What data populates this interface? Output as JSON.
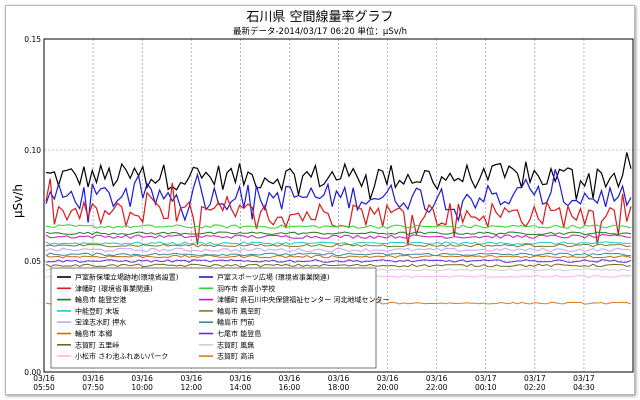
{
  "chart_data": {
    "type": "line",
    "title": "石川県 空間線量率グラフ",
    "subtitle": "最新データ-2014/03/17 06:20 単位：μSv/h",
    "ylabel": "μSv/h",
    "xlabel": "",
    "ylim": [
      0,
      0.15
    ],
    "yticks": [
      "0.00",
      "0.05",
      "0.10",
      "0.15"
    ],
    "xticks": [
      {
        "date": "03/16",
        "time": "05:50"
      },
      {
        "date": "03/16",
        "time": "07:50"
      },
      {
        "date": "03/16",
        "time": "10:00"
      },
      {
        "date": "03/16",
        "time": "12:00"
      },
      {
        "date": "03/16",
        "time": "14:00"
      },
      {
        "date": "03/16",
        "time": "16:00"
      },
      {
        "date": "03/16",
        "time": "18:00"
      },
      {
        "date": "03/16",
        "time": "20:00"
      },
      {
        "date": "03/16",
        "time": "22:00"
      },
      {
        "date": "03/17",
        "time": "00:10"
      },
      {
        "date": "03/17",
        "time": "02:20"
      },
      {
        "date": "03/17",
        "time": "04:30"
      }
    ],
    "grid": true,
    "legend_position": "lower-left",
    "series": [
      {
        "name": "戸室新保埋立場跡地(環境省設置)",
        "color": "#000000",
        "base": 0.088,
        "amp": 0.006,
        "spiky": true
      },
      {
        "name": "戸室スポーツ広場 (環境省事業関連)",
        "color": "#1a1ad8",
        "base": 0.079,
        "amp": 0.006,
        "spiky": true
      },
      {
        "name": "津幡町 (環境省事業関連)",
        "color": "#d81a1a",
        "base": 0.071,
        "amp": 0.006,
        "spiky": true
      },
      {
        "name": "羽咋市 余喜小学校",
        "color": "#2ad62a",
        "base": 0.0655,
        "amp": 0.0008,
        "spiky": false
      },
      {
        "name": "輪島市 能登空港",
        "color": "#1f7a1f",
        "base": 0.0625,
        "amp": 0.0006,
        "spiky": false
      },
      {
        "name": "津幡町 県石川中央保健福祉センター 河北地域センター",
        "color": "#c21ac2",
        "base": 0.061,
        "amp": 0.0008,
        "spiky": false
      },
      {
        "name": "中能登町 末坂",
        "color": "#1ac8c8",
        "base": 0.058,
        "amp": 0.0006,
        "spiky": false
      },
      {
        "name": "輪島市 鳳至町",
        "color": "#7a7a2a",
        "base": 0.057,
        "amp": 0.0006,
        "spiky": false
      },
      {
        "name": "宝達志水町 押水",
        "color": "#c8a0ff",
        "base": 0.055,
        "amp": 0.0008,
        "spiky": false
      },
      {
        "name": "輪島市 門前",
        "color": "#3a8a9a",
        "base": 0.053,
        "amp": 0.0006,
        "spiky": false
      },
      {
        "name": "輪島市 本郷",
        "color": "#c86a1a",
        "base": 0.052,
        "amp": 0.0006,
        "spiky": false
      },
      {
        "name": "七尾市 能登島",
        "color": "#6a2ad6",
        "base": 0.05,
        "amp": 0.0006,
        "spiky": false
      },
      {
        "name": "志賀町 五里峠",
        "color": "#6a6a20",
        "base": 0.048,
        "amp": 0.0006,
        "spiky": false
      },
      {
        "name": "志賀町 風無",
        "color": "#d0d0d0",
        "base": 0.046,
        "amp": 0.0005,
        "spiky": false
      },
      {
        "name": "小松市 さわ池ふれあいパーク",
        "color": "#ffb0ff",
        "base": 0.043,
        "amp": 0.0005,
        "spiky": false
      },
      {
        "name": "志賀町 高浜",
        "color": "#e07a1a",
        "base": 0.031,
        "amp": 0.0004,
        "spiky": false
      }
    ]
  }
}
